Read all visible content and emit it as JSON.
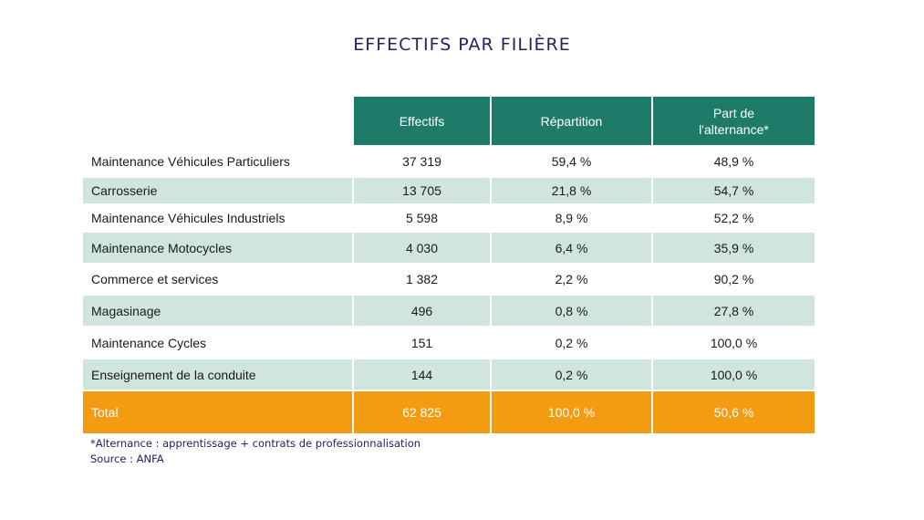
{
  "chart_data": {
    "type": "table",
    "title": "EFFECTIFS PAR FILIÈRE",
    "columns": [
      "",
      "Effectifs",
      "Répartition",
      "Part de l'alternance*"
    ],
    "rows": [
      [
        "Maintenance Véhicules Particuliers",
        "37 319",
        "59,4 %",
        "48,9 %"
      ],
      [
        "Carrosserie",
        "13 705",
        "21,8 %",
        "54,7 %"
      ],
      [
        "Maintenance Véhicules Industriels",
        "5 598",
        "8,9 %",
        "52,2 %"
      ],
      [
        "Maintenance Motocycles",
        "4 030",
        "6,4 %",
        "35,9 %"
      ],
      [
        "Commerce et services",
        "1 382",
        "2,2 %",
        "90,2 %"
      ],
      [
        "Magasinage",
        "496",
        "0,8 %",
        "27,8 %"
      ],
      [
        "Maintenance Cycles",
        "151",
        "0,2 %",
        "100,0 %"
      ],
      [
        "Enseignement de la conduite",
        "144",
        "0,2 %",
        "100,0 %"
      ]
    ],
    "total": [
      "Total",
      "62 825",
      "100,0 %",
      "50,6 %"
    ]
  },
  "header": {
    "col1": "Effectifs",
    "col2": "Répartition",
    "col3_line1": "Part de",
    "col3_line2": "l'alternance*"
  },
  "footnotes": {
    "note": "*Alternance : apprentissage + contrats de professionnalisation",
    "source": "Source : ANFA"
  },
  "colors": {
    "header_green": "#1e7b69",
    "band_light_green": "#cfe5dd",
    "total_orange": "#f39c12",
    "title_navy": "#1f2466"
  }
}
